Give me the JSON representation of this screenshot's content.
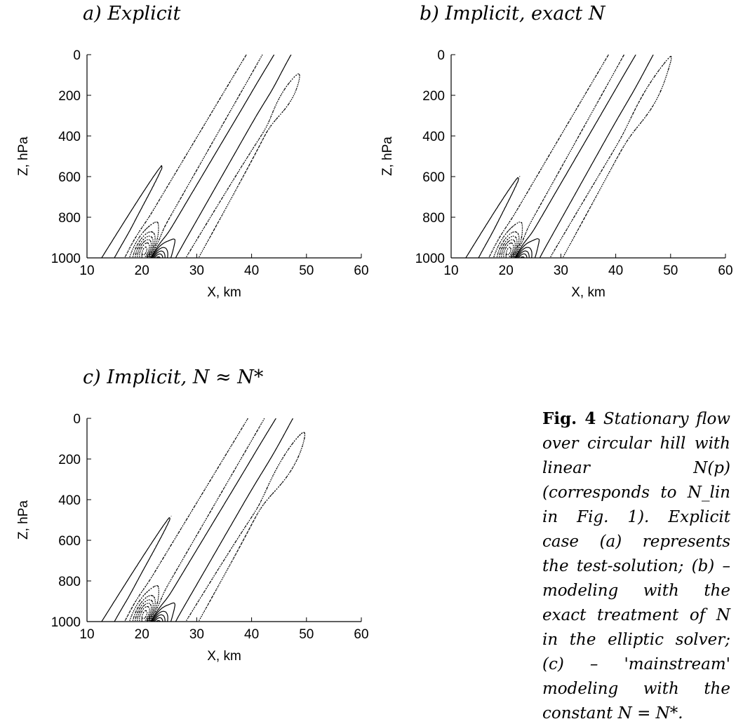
{
  "panel_titles": [
    "a) Explicit",
    "b) Implicit, exact N",
    "c) Implicit, N ≈ N*"
  ],
  "caption": {
    "label": "Fig.  4",
    "text": "Stationary flow over circular hill with linear N(p) (corresponds to N_lin in Fig. 1). Explicit case (a) represents the test-solution; (b) – modeling with the exact treatment of N in the elliptic solver; (c) – 'mainstream' modeling with the constant N = N*."
  },
  "chart_data": [
    {
      "type": "contour",
      "title": "a) Explicit",
      "xlabel": "X, km",
      "ylabel": "Z, hPa",
      "xlim": [
        10,
        60
      ],
      "ylim": [
        1000,
        0
      ],
      "xticks": [
        10,
        20,
        30,
        40,
        50,
        60
      ],
      "yticks": [
        0,
        200,
        400,
        600,
        800,
        1000
      ],
      "line_styles": {
        "solid": "positive",
        "dotted": "negative"
      }
    },
    {
      "type": "contour",
      "title": "b) Implicit, exact N",
      "xlabel": "X, km",
      "ylabel": "Z, hPa",
      "xlim": [
        10,
        60
      ],
      "ylim": [
        1000,
        0
      ],
      "xticks": [
        10,
        20,
        30,
        40,
        50,
        60
      ],
      "yticks": [
        0,
        200,
        400,
        600,
        800,
        1000
      ],
      "line_styles": {
        "solid": "positive",
        "dotted": "negative"
      }
    },
    {
      "type": "contour",
      "title": "c) Implicit, N ≈ N*",
      "xlabel": "X, km",
      "ylabel": "Z, hPa",
      "xlim": [
        10,
        60
      ],
      "ylim": [
        1000,
        0
      ],
      "xticks": [
        10,
        20,
        30,
        40,
        50,
        60
      ],
      "yticks": [
        0,
        200,
        400,
        600,
        800,
        1000
      ],
      "line_styles": {
        "solid": "positive",
        "dotted": "negative"
      }
    }
  ]
}
